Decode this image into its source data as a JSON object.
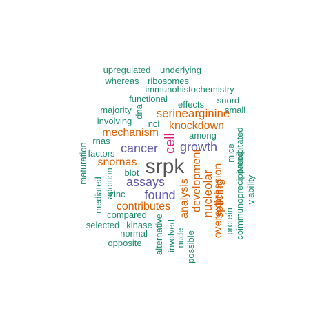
{
  "colors": {
    "teal": "#1b8a6b",
    "orange": "#d95f02",
    "purple": "#5e58a6",
    "magenta": "#d81b7a",
    "gray": "#555555"
  },
  "words": [
    {
      "text": "upregulated",
      "color": "teal"
    },
    {
      "text": "underlying",
      "color": "teal"
    },
    {
      "text": "whereas",
      "color": "teal"
    },
    {
      "text": "ribosomes",
      "color": "teal"
    },
    {
      "text": "immunohistochemistry",
      "color": "teal"
    },
    {
      "text": "functional",
      "color": "teal"
    },
    {
      "text": "effects",
      "color": "teal"
    },
    {
      "text": "snord",
      "color": "teal"
    },
    {
      "text": "majority",
      "color": "teal"
    },
    {
      "text": "small",
      "color": "teal"
    },
    {
      "text": "serinearginine",
      "color": "orange"
    },
    {
      "text": "involving",
      "color": "teal"
    },
    {
      "text": "ncl",
      "color": "teal"
    },
    {
      "text": "knockdown",
      "color": "orange"
    },
    {
      "text": "dna",
      "color": "teal"
    },
    {
      "text": "mechanism",
      "color": "orange"
    },
    {
      "text": "among",
      "color": "teal"
    },
    {
      "text": "rnas",
      "color": "teal"
    },
    {
      "text": "cell",
      "color": "magenta"
    },
    {
      "text": "cancer",
      "color": "purple"
    },
    {
      "text": "growth",
      "color": "purple"
    },
    {
      "text": "factors",
      "color": "teal"
    },
    {
      "text": "snornas",
      "color": "orange"
    },
    {
      "text": "maturation",
      "color": "teal"
    },
    {
      "text": "blot",
      "color": "teal"
    },
    {
      "text": "srpk",
      "color": "gray"
    },
    {
      "text": "development",
      "color": "orange"
    },
    {
      "text": "nucleolar",
      "color": "orange"
    },
    {
      "text": "splicing",
      "color": "orange"
    },
    {
      "text": "mice",
      "color": "teal"
    },
    {
      "text": "precipitated",
      "color": "teal"
    },
    {
      "text": "assays",
      "color": "purple"
    },
    {
      "text": "addition",
      "color": "teal"
    },
    {
      "text": "mediated",
      "color": "teal"
    },
    {
      "text": "zinc",
      "color": "teal"
    },
    {
      "text": "found",
      "color": "purple"
    },
    {
      "text": "analysis",
      "color": "orange"
    },
    {
      "text": "overexpression",
      "color": "orange"
    },
    {
      "text": "coimmunoprecipitated",
      "color": "teal"
    },
    {
      "text": "viability",
      "color": "teal"
    },
    {
      "text": "contributes",
      "color": "orange"
    },
    {
      "text": "compared",
      "color": "teal"
    },
    {
      "text": "protein",
      "color": "teal"
    },
    {
      "text": "alternative",
      "color": "teal"
    },
    {
      "text": "selected",
      "color": "teal"
    },
    {
      "text": "kinase",
      "color": "teal"
    },
    {
      "text": "involved",
      "color": "teal"
    },
    {
      "text": "normal",
      "color": "teal"
    },
    {
      "text": "nude",
      "color": "teal"
    },
    {
      "text": "opposite",
      "color": "teal"
    },
    {
      "text": "possible",
      "color": "teal"
    }
  ]
}
